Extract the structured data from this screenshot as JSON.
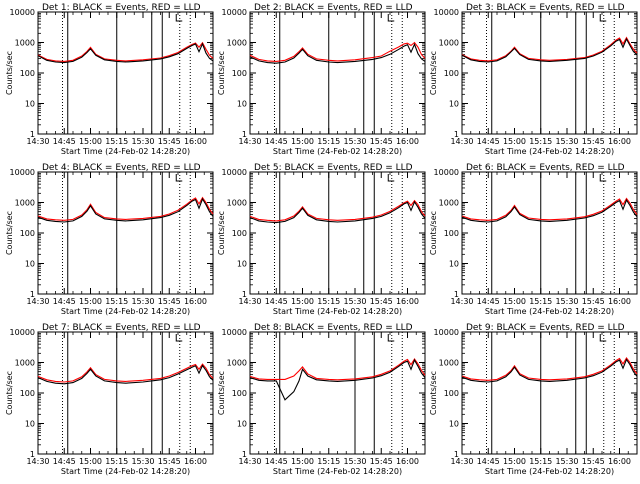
{
  "chart_data": {
    "type": "line",
    "y_scale": "log",
    "ylim": [
      1,
      10000
    ],
    "xlim": [
      "14:30",
      "16:10"
    ],
    "x_ticks": [
      "14:30",
      "14:45",
      "15:00",
      "15:15",
      "15:30",
      "15:45",
      "16:00"
    ],
    "y_ticks": [
      "1",
      "10",
      "100",
      "1000",
      "10000"
    ],
    "ylabel": "Counts/sec",
    "xlabel": "Start Time (24-Feb-02 14:28:20)",
    "grid": false,
    "series_colors": {
      "events": "#000000",
      "lld": "#ff0000"
    },
    "x_samples": [
      "14:30",
      "14:35",
      "14:40",
      "14:45",
      "14:50",
      "14:55",
      "14:58",
      "15:00",
      "15:03",
      "15:08",
      "15:15",
      "15:20",
      "15:30",
      "15:40",
      "15:45",
      "15:50",
      "15:55",
      "15:58",
      "16:00",
      "16:02",
      "16:04",
      "16:06",
      "16:08",
      "16:10"
    ],
    "panels": [
      {
        "title": "Det 1: BLACK = Events, RED = LLD",
        "solid_lines": [
          "14:47",
          "15:15",
          "15:35",
          "15:41"
        ],
        "dotted_lines": [
          "14:44",
          "15:51",
          "15:57"
        ],
        "series": [
          {
            "name": "Events",
            "values": [
              370,
              260,
              230,
              220,
              240,
              330,
              470,
              620,
              380,
              270,
              240,
              230,
              250,
              290,
              340,
              430,
              640,
              800,
              890,
              500,
              900,
              450,
              300,
              250
            ]
          },
          {
            "name": "LLD",
            "values": [
              390,
              280,
              250,
              240,
              260,
              360,
              510,
              690,
              410,
              290,
              260,
              250,
              270,
              310,
              370,
              470,
              700,
              860,
              960,
              700,
              980,
              600,
              380,
              300
            ]
          }
        ]
      },
      {
        "title": "Det 2: BLACK = Events, RED = LLD",
        "solid_lines": [
          "14:47",
          "15:15",
          "15:35",
          "15:41"
        ],
        "dotted_lines": [
          "14:44",
          "15:51",
          "15:57"
        ],
        "series": [
          {
            "name": "Events",
            "values": [
              340,
              250,
              220,
              210,
              230,
              310,
              450,
              600,
              370,
              260,
              230,
              220,
              240,
              280,
              320,
              410,
              600,
              760,
              850,
              480,
              870,
              430,
              290,
              240
            ]
          },
          {
            "name": "LLD",
            "values": [
              380,
              280,
              250,
              240,
              260,
              350,
              500,
              660,
              410,
              290,
              260,
              250,
              270,
              320,
              360,
              520,
              720,
              900,
              950,
              800,
              1000,
              700,
              400,
              300
            ]
          }
        ]
      },
      {
        "title": "Det 3: BLACK = Events, RED = LLD",
        "solid_lines": [
          "14:47",
          "15:15",
          "15:35",
          "15:41"
        ],
        "dotted_lines": [
          "14:44",
          "15:51",
          "15:57"
        ],
        "series": [
          {
            "name": "Events",
            "values": [
              380,
              270,
              240,
              230,
              250,
              340,
              490,
              640,
              400,
              280,
              250,
              240,
              260,
              300,
              360,
              480,
              780,
              1100,
              1250,
              700,
              1300,
              800,
              500,
              400
            ]
          },
          {
            "name": "LLD",
            "values": [
              400,
              290,
              260,
              250,
              270,
              370,
              520,
              700,
              430,
              300,
              270,
              260,
              280,
              320,
              390,
              520,
              850,
              1200,
              1400,
              900,
              1450,
              900,
              600,
              450
            ]
          }
        ]
      },
      {
        "title": "Det 4: BLACK = Events, RED = LLD",
        "solid_lines": [
          "14:47",
          "15:15",
          "15:35",
          "15:41"
        ],
        "dotted_lines": [
          "14:44",
          "15:51",
          "15:57"
        ],
        "series": [
          {
            "name": "Events",
            "values": [
              330,
              260,
              240,
              230,
              250,
              350,
              520,
              780,
              420,
              290,
              260,
              250,
              270,
              320,
              380,
              500,
              800,
              1100,
              1250,
              650,
              1300,
              850,
              500,
              350
            ]
          },
          {
            "name": "LLD",
            "values": [
              360,
              290,
              270,
              260,
              280,
              390,
              580,
              870,
              470,
              320,
              290,
              280,
              300,
              350,
              420,
              560,
              880,
              1200,
              1400,
              900,
              1450,
              1000,
              600,
              420
            ]
          }
        ]
      },
      {
        "title": "Det 5: BLACK = Events, RED = LLD",
        "solid_lines": [
          "14:47",
          "15:15",
          "15:35",
          "15:41"
        ],
        "dotted_lines": [
          "14:44",
          "15:51",
          "15:57"
        ],
        "series": [
          {
            "name": "Events",
            "values": [
              320,
              250,
              230,
              220,
              240,
              320,
              470,
              650,
              380,
              270,
              240,
              230,
              250,
              300,
              350,
              460,
              680,
              900,
              1000,
              550,
              1050,
              700,
              420,
              300
            ]
          },
          {
            "name": "LLD",
            "values": [
              350,
              280,
              260,
              250,
              270,
              360,
              520,
              720,
              420,
              300,
              270,
              260,
              280,
              330,
              390,
              510,
              760,
              980,
              1100,
              800,
              1150,
              850,
              500,
              360
            ]
          }
        ]
      },
      {
        "title": "Det 6: BLACK = Events, RED = LLD",
        "solid_lines": [
          "14:47",
          "15:15",
          "15:35",
          "15:41"
        ],
        "dotted_lines": [
          "14:44",
          "15:51",
          "15:57"
        ],
        "series": [
          {
            "name": "Events",
            "values": [
              330,
              260,
              240,
              230,
              250,
              340,
              500,
              720,
              400,
              280,
              250,
              240,
              260,
              310,
              370,
              480,
              750,
              1000,
              1150,
              600,
              1200,
              800,
              480,
              340
            ]
          },
          {
            "name": "LLD",
            "values": [
              360,
              290,
              270,
              260,
              280,
              380,
              550,
              800,
              440,
              310,
              280,
              270,
              290,
              340,
              410,
              530,
              830,
              1100,
              1300,
              850,
              1350,
              950,
              580,
              400
            ]
          }
        ]
      },
      {
        "title": "Det 7: BLACK = Events, RED = LLD",
        "solid_lines": [
          "14:47",
          "15:15",
          "15:35",
          "15:41"
        ],
        "dotted_lines": [
          "14:44",
          "15:51",
          "15:57"
        ],
        "series": [
          {
            "name": "Events",
            "values": [
              320,
              240,
              210,
              200,
              220,
              300,
              440,
              600,
              360,
              250,
              220,
              210,
              230,
              270,
              320,
              420,
              580,
              700,
              780,
              450,
              800,
              550,
              340,
              260
            ]
          },
          {
            "name": "LLD",
            "values": [
              350,
              270,
              240,
              230,
              250,
              340,
              490,
              670,
              400,
              280,
              250,
              240,
              260,
              300,
              360,
              470,
              650,
              780,
              860,
              600,
              880,
              650,
              400,
              300
            ]
          }
        ]
      },
      {
        "title": "Det 8: BLACK = Events, RED = LLD",
        "solid_lines": [
          "14:47",
          "15:30",
          "15:41"
        ],
        "dotted_lines": [
          "14:44",
          "15:51",
          "15:57"
        ],
        "series": [
          {
            "name": "Events",
            "values": [
              320,
              260,
              250,
              250,
              60,
              110,
              250,
              600,
              360,
              270,
              250,
              240,
              260,
              310,
              370,
              480,
              750,
              1000,
              1100,
              600,
              1200,
              750,
              450,
              320
            ]
          },
          {
            "name": "LLD",
            "values": [
              350,
              290,
              280,
              280,
              280,
              360,
              530,
              720,
              420,
              300,
              280,
              270,
              290,
              340,
              410,
              530,
              820,
              1100,
              1250,
              850,
              1300,
              900,
              550,
              380
            ]
          }
        ]
      },
      {
        "title": "Det 9: BLACK = Events, RED = LLD",
        "solid_lines": [
          "14:47",
          "15:15",
          "15:35",
          "15:41"
        ],
        "dotted_lines": [
          "14:44",
          "15:51",
          "15:57"
        ],
        "series": [
          {
            "name": "Events",
            "values": [
              330,
              260,
              240,
              230,
              250,
              340,
              490,
              700,
              390,
              280,
              250,
              240,
              260,
              310,
              370,
              480,
              760,
              1050,
              1200,
              650,
              1250,
              850,
              500,
              350
            ]
          },
          {
            "name": "LLD",
            "values": [
              360,
              290,
              270,
              260,
              280,
              380,
              540,
              780,
              430,
              310,
              280,
              270,
              290,
              340,
              410,
              530,
              840,
              1150,
              1350,
              900,
              1400,
              1000,
              600,
              420
            ]
          }
        ]
      }
    ]
  }
}
